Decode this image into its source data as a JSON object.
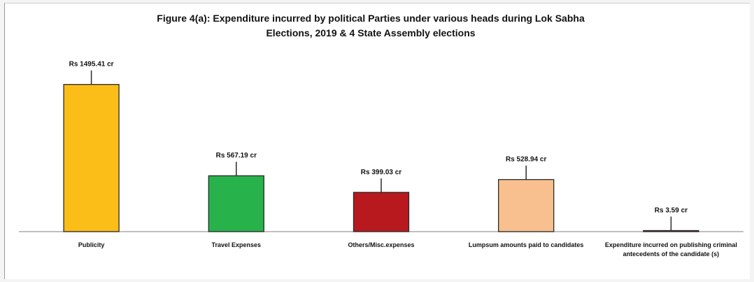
{
  "chart_data": {
    "type": "bar",
    "title_lines": [
      "Figure 4(a): Expenditure incurred by political Parties under various heads during Lok Sabha",
      "Elections, 2019 & 4 State Assembly elections"
    ],
    "categories": [
      [
        "Publicity"
      ],
      [
        "Travel Expenses"
      ],
      [
        "Others/Misc.expenses"
      ],
      [
        "Lumpsum amounts paid to candidates"
      ],
      [
        "Expenditure incurred on publishing criminal",
        "antecedents of the candidate (s)"
      ]
    ],
    "values": [
      1495.41,
      567.19,
      399.03,
      528.94,
      3.59
    ],
    "data_labels": [
      "Rs 1495.41 cr",
      "Rs 567.19 cr",
      "Rs 399.03 cr",
      "Rs 528.94 cr",
      "Rs 3.59 cr"
    ],
    "colors": [
      "#fbbe19",
      "#27b24b",
      "#b8191e",
      "#f7c08e",
      "#b8191e"
    ],
    "ylim": [
      0,
      1550
    ],
    "grid": false,
    "legend": "none"
  }
}
